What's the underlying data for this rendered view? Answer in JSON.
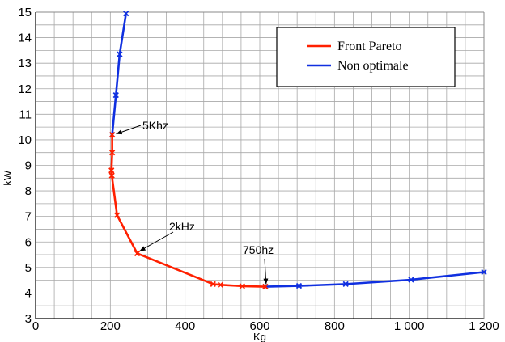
{
  "chart_data": {
    "type": "line",
    "title": "",
    "xlabel": "Kg",
    "ylabel": "kW",
    "xlim": [
      0,
      1200
    ],
    "ylim": [
      3,
      15
    ],
    "xticks": [
      0,
      200,
      400,
      600,
      800,
      1000,
      1200
    ],
    "xtick_labels": [
      "0",
      "200",
      "400",
      "600",
      "800",
      "1 000",
      "1 200"
    ],
    "yticks": [
      3,
      4,
      5,
      6,
      7,
      8,
      9,
      10,
      11,
      12,
      13,
      14,
      15
    ],
    "ytick_labels": [
      "3",
      "4",
      "5",
      "6",
      "7",
      "8",
      "9",
      "10",
      "11",
      "12",
      "13",
      "14",
      "15"
    ],
    "x_minor_step": 50,
    "y_minor_step": 0.5,
    "grid": true,
    "legend_position": "top-right",
    "series": [
      {
        "name": "Front Pareto",
        "color": "#ff2000",
        "points": [
          [
            205,
            10.2
          ],
          [
            205,
            9.5
          ],
          [
            203,
            8.8
          ],
          [
            204,
            8.6
          ],
          [
            218,
            7.05
          ],
          [
            272,
            5.55
          ],
          [
            475,
            4.35
          ],
          [
            495,
            4.32
          ],
          [
            553,
            4.27
          ],
          [
            615,
            4.25
          ]
        ]
      },
      {
        "name": "Non optimale",
        "color": "#1030e0",
        "points": [
          [
            205,
            10.2
          ],
          [
            215,
            11.75
          ],
          [
            225,
            13.35
          ],
          [
            242,
            14.95
          ],
          [
            615,
            4.25
          ],
          [
            705,
            4.28
          ],
          [
            830,
            4.35
          ],
          [
            1005,
            4.52
          ],
          [
            1200,
            4.82
          ]
        ]
      }
    ],
    "annotations": [
      {
        "text": "5Khz",
        "x": 207,
        "y": 10.2
      },
      {
        "text": "2kHz",
        "x": 272,
        "y": 5.55
      },
      {
        "text": "750hz",
        "x": 617,
        "y": 4.25
      }
    ]
  }
}
